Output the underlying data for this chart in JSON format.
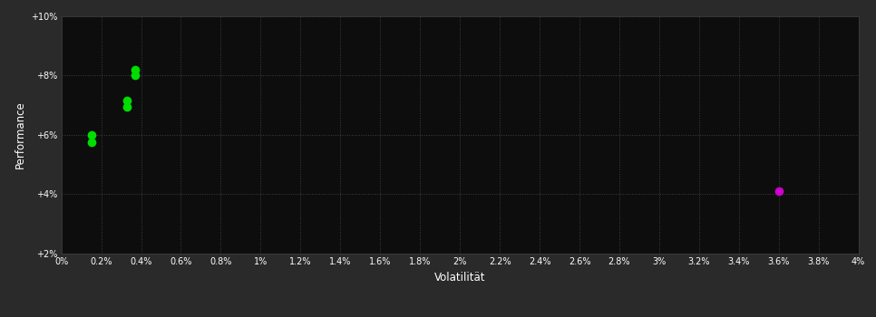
{
  "background_color": "#1a1a1a",
  "plot_bg_color": "#0d0d0d",
  "outer_bg_color": "#2a2a2a",
  "grid_color": "#404040",
  "text_color": "#ffffff",
  "xlabel": "Volatilität",
  "ylabel": "Performance",
  "xlim": [
    0,
    0.04
  ],
  "ylim": [
    0.02,
    0.1
  ],
  "xtick_positions": [
    0.0,
    0.002,
    0.004,
    0.006,
    0.008,
    0.01,
    0.012,
    0.014,
    0.016,
    0.018,
    0.02,
    0.022,
    0.024,
    0.026,
    0.028,
    0.03,
    0.032,
    0.034,
    0.036,
    0.038,
    0.04
  ],
  "xtick_labels": [
    "0%",
    "0.2%",
    "0.4%",
    "0.6%",
    "0.8%",
    "1%",
    "1.2%",
    "1.4%",
    "1.6%",
    "1.8%",
    "2%",
    "2.2%",
    "2.4%",
    "2.6%",
    "2.8%",
    "3%",
    "3.2%",
    "3.4%",
    "3.6%",
    "3.8%",
    "4%"
  ],
  "ytick_positions": [
    0.02,
    0.04,
    0.06,
    0.08,
    0.1
  ],
  "ytick_labels": [
    "+2%",
    "+4%",
    "+6%",
    "+8%",
    "+10%"
  ],
  "green_points": [
    [
      0.0015,
      0.06
    ],
    [
      0.0015,
      0.0575
    ],
    [
      0.0033,
      0.0715
    ],
    [
      0.0033,
      0.0695
    ],
    [
      0.0037,
      0.082
    ],
    [
      0.0037,
      0.08
    ]
  ],
  "magenta_points": [
    [
      0.036,
      0.041
    ]
  ],
  "green_color": "#00dd00",
  "magenta_color": "#cc00cc",
  "marker_size": 7
}
